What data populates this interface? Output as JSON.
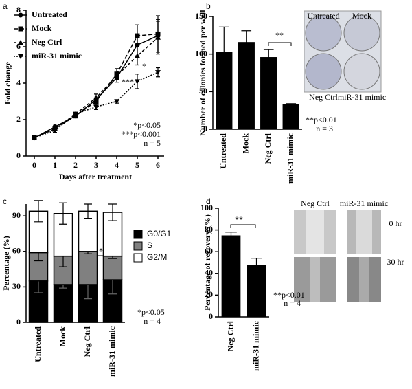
{
  "chart_data": [
    {
      "type": "line",
      "panel": "a",
      "ylabel": "Fold change",
      "xlabel": "Days after treatment",
      "x": [
        0,
        1,
        2,
        3,
        4,
        5,
        6
      ],
      "xlim": [
        -0.4,
        6.3
      ],
      "xticks": [
        0,
        1,
        2,
        3,
        4,
        5,
        6
      ],
      "ylim": [
        0,
        8
      ],
      "yticks": [
        0,
        2,
        4,
        6,
        8
      ],
      "legend": "upper left",
      "series": [
        {
          "name": "Untreated",
          "color": "#000000",
          "marker": "circle",
          "dash": "none",
          "values": [
            1,
            1.6,
            2.2,
            3.1,
            4.3,
            6.1,
            6.6
          ],
          "errors": [
            0.05,
            0.15,
            0.1,
            0.2,
            0.25,
            0.6,
            0.9
          ]
        },
        {
          "name": "Mock",
          "color": "#000000",
          "marker": "square",
          "dash": "6 3",
          "values": [
            1,
            1.5,
            2.2,
            3.0,
            4.5,
            6.6,
            6.7
          ],
          "errors": [
            0.05,
            0.1,
            0.1,
            0.2,
            0.3,
            0.6,
            1.0
          ]
        },
        {
          "name": "Neg Ctrl",
          "color": "#000000",
          "marker": "triangle",
          "dash": "4 3",
          "values": [
            1,
            1.5,
            2.3,
            3.2,
            4.4,
            5.5,
            6.5
          ],
          "errors": [
            0.05,
            0.1,
            0.1,
            0.2,
            0.2,
            0.5,
            0.9
          ]
        },
        {
          "name": "miR-31 mimic",
          "color": "#000000",
          "marker": "triangle-down",
          "dash": "2 2",
          "values": [
            1,
            1.4,
            2.3,
            2.7,
            3.0,
            4.1,
            4.6
          ],
          "errors": [
            0.05,
            0.1,
            0.1,
            0.15,
            0.1,
            0.4,
            0.25
          ]
        }
      ],
      "annotations": [
        "*",
        "***",
        "*p<0.05",
        "***p<0.001",
        "n = 5"
      ]
    },
    {
      "type": "bar",
      "panel": "b",
      "ylabel": "Number of colonies formed per well",
      "categories": [
        "Untreated",
        "Mock",
        "Neg Ctrl",
        "miR-31 mimic"
      ],
      "values": [
        103,
        116,
        96,
        33
      ],
      "errors": [
        33,
        15,
        10,
        1
      ],
      "color": "#000000",
      "ylim": [
        0,
        150
      ],
      "yticks": [
        0,
        50,
        100,
        150
      ],
      "annotations": [
        "**",
        "**p<0.01",
        "n = 3"
      ],
      "image_labels": [
        "Untreated",
        "Mock",
        "Neg Ctrl",
        "miR-31 mimic"
      ]
    },
    {
      "type": "stacked_bar",
      "panel": "c",
      "ylabel": "Percentage (%)",
      "categories": [
        "Untreated",
        "Mock",
        "Neg Ctrl",
        "miR-31 mimic"
      ],
      "ylim": [
        0,
        100
      ],
      "yticks": [
        0,
        30,
        60,
        90
      ],
      "legend": "right",
      "series": [
        {
          "name": "G0/G1",
          "color": "#000000",
          "values": [
            35,
            32,
            32,
            36
          ],
          "errors": [
            10,
            3,
            12,
            12
          ]
        },
        {
          "name": "S",
          "color": "#808080",
          "values": [
            24,
            24,
            28,
            20
          ],
          "errors": [
            7,
            9,
            2,
            2
          ]
        },
        {
          "name": "G2/M",
          "color": "#ffffff",
          "values": [
            35,
            36,
            34,
            37
          ],
          "errors": [
            9,
            9,
            6,
            7
          ]
        }
      ],
      "annotations": [
        "*",
        "*p<0.05",
        "n = 4"
      ]
    },
    {
      "type": "bar",
      "panel": "d",
      "ylabel": "Percentage of recovery (%)",
      "categories": [
        "Neg Ctrl",
        "miR-31 mimic"
      ],
      "values": [
        75,
        48
      ],
      "errors": [
        3,
        6
      ],
      "color": "#000000",
      "ylim": [
        0,
        100
      ],
      "yticks": [
        0,
        20,
        40,
        60,
        80,
        100
      ],
      "annotations": [
        "**",
        "**p<0.01",
        "n = 4"
      ],
      "image_labels": [
        "Neg Ctrl",
        "miR-31 mimic",
        "0 hr",
        "30 hr"
      ]
    }
  ]
}
